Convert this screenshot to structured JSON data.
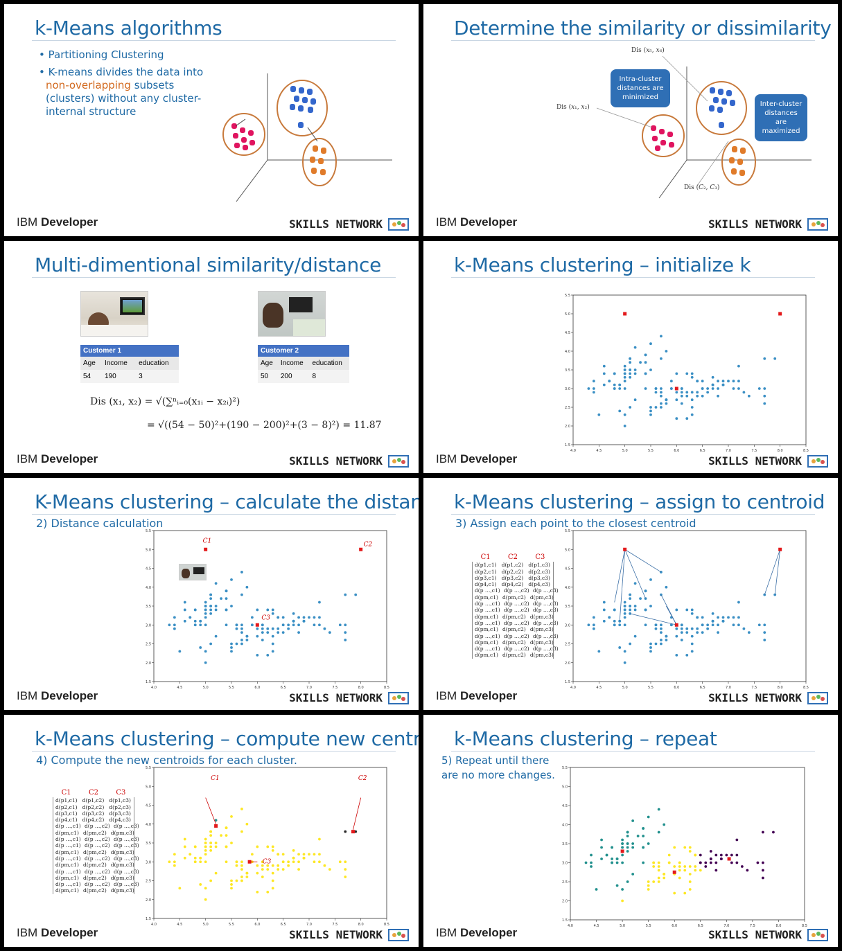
{
  "common": {
    "ibm_prefix": "IBM",
    "ibm_suffix": "Developer",
    "skills_network": "SKILLS NETWORK"
  },
  "slides": [
    {
      "title": "k-Means algorithms",
      "bullets": [
        {
          "text_a": "Partitioning Clustering",
          "text_b": "",
          "text_c": ""
        },
        {
          "text_a": "K-means divides the data into ",
          "text_b": "non-overlapping",
          "text_c": " subsets (clusters) without any cluster-internal structure"
        }
      ]
    },
    {
      "title": "Determine the similarity or dissimilarity",
      "intra_callout": "Intra-cluster distances are minimized",
      "inter_callout": "Inter-cluster distances are maximized",
      "labels": [
        "Dis (x5, x6)",
        "Dis (x1, x2)",
        "Dis (C2, C3)"
      ]
    },
    {
      "title": "Multi-dimentional similarity/distance",
      "customer1": {
        "header": "Customer 1",
        "cols": [
          "Age",
          "Income",
          "education"
        ],
        "vals": [
          "54",
          "190",
          "3"
        ]
      },
      "customer2": {
        "header": "Customer 2",
        "cols": [
          "Age",
          "Income",
          "education"
        ],
        "vals": [
          "50",
          "200",
          "8"
        ]
      },
      "formula1": "Dis (x₁, x₂) = √(∑ⁿᵢ₌₀(x₁ᵢ − x₂ᵢ)²)",
      "formula2": "= √((54 − 50)²+(190 − 200)²+(3 − 8)²) = 11.87"
    },
    {
      "title": "k-Means clustering – initialize k"
    },
    {
      "title": "K-Means clustering – calculate the distance",
      "subtitle": "2) Distance calculation"
    },
    {
      "title": "k-Means clustering – assign to centroid",
      "subtitle": "3) Assign each point to the closest centroid"
    },
    {
      "title": "k-Means clustering – compute new centroids",
      "subtitle": "4) Compute the new centroids for each cluster."
    },
    {
      "title": "k-Means clustering – repeat",
      "subtitle_line1": "5) Repeat until there",
      "subtitle_line2": "are no more changes."
    }
  ],
  "centroid_labels": [
    "C1",
    "C2",
    "C3"
  ],
  "matrix": {
    "headers": [
      "C1",
      "C2",
      "C3"
    ],
    "rows": [
      [
        "d(p1,c1)",
        "d(p1,c2)",
        "d(p1,c3)"
      ],
      [
        "d(p2,c1)",
        "d(p2,c2)",
        "d(p2,c3)"
      ],
      [
        "d(p3,c1)",
        "d(p3,c2)",
        "d(p3,c3)"
      ],
      [
        "d(p4,c1)",
        "d(p4,c2)",
        "d(p4,c3)"
      ],
      [
        "d(p …,c1)",
        "d(p …,c2)",
        "d(p …,c3)"
      ],
      [
        "d(pm,c1)",
        "d(pm,c2)",
        "d(pm,c3)"
      ],
      [
        "d(p …,c1)",
        "d(p …,c2)",
        "d(p …,c3)"
      ],
      [
        "d(p …,c1)",
        "d(p …,c2)",
        "d(p …,c3)"
      ],
      [
        "d(pm,c1)",
        "d(pm,c2)",
        "d(pm,c3)"
      ],
      [
        "d(p …,c1)",
        "d(p …,c2)",
        "d(p …,c3)"
      ],
      [
        "d(pm,c1)",
        "d(pm,c2)",
        "d(pm,c3)"
      ],
      [
        "d(p …,c1)",
        "d(p …,c2)",
        "d(p …,c3)"
      ],
      [
        "d(pm,c1)",
        "d(pm,c2)",
        "d(pm,c3)"
      ],
      [
        "d(p …,c1)",
        "d(p …,c2)",
        "d(p …,c3)"
      ],
      [
        "d(pm,c1)",
        "d(pm,c2)",
        "d(pm,c3)"
      ]
    ]
  },
  "chart_data": {
    "type": "scatter",
    "xlim": [
      4.0,
      8.5
    ],
    "ylim": [
      1.5,
      5.5
    ],
    "x_ticks": [
      "4.0",
      "4.5",
      "5.0",
      "5.5",
      "6.0",
      "6.5",
      "7.0",
      "7.5",
      "8.0",
      "8.5"
    ],
    "y_ticks": [
      "1.5",
      "2.0",
      "2.5",
      "3.0",
      "3.5",
      "4.0",
      "4.5",
      "5.0",
      "5.5"
    ],
    "initial_centroids": [
      [
        5.0,
        5.0
      ],
      [
        8.0,
        5.0
      ],
      [
        6.0,
        3.0
      ]
    ],
    "new_centroids": [
      [
        5.2,
        3.95
      ],
      [
        7.85,
        3.8
      ],
      [
        5.85,
        3.0
      ]
    ],
    "final_centroids": [
      [
        5.0,
        3.3
      ],
      [
        7.05,
        3.1
      ],
      [
        6.0,
        2.75
      ]
    ],
    "points": [
      [
        5.1,
        3.5
      ],
      [
        4.9,
        3.0
      ],
      [
        4.7,
        3.2
      ],
      [
        4.6,
        3.1
      ],
      [
        5.0,
        3.6
      ],
      [
        5.4,
        3.9
      ],
      [
        4.6,
        3.4
      ],
      [
        5.0,
        3.4
      ],
      [
        4.4,
        2.9
      ],
      [
        4.9,
        3.1
      ],
      [
        5.4,
        3.7
      ],
      [
        4.8,
        3.4
      ],
      [
        4.8,
        3.0
      ],
      [
        4.3,
        3.0
      ],
      [
        5.8,
        4.0
      ],
      [
        5.7,
        4.4
      ],
      [
        5.4,
        3.9
      ],
      [
        5.1,
        3.5
      ],
      [
        5.7,
        3.8
      ],
      [
        5.1,
        3.8
      ],
      [
        5.4,
        3.4
      ],
      [
        5.1,
        3.7
      ],
      [
        4.6,
        3.6
      ],
      [
        5.1,
        3.3
      ],
      [
        4.8,
        3.4
      ],
      [
        5.0,
        3.0
      ],
      [
        5.0,
        3.4
      ],
      [
        5.2,
        3.5
      ],
      [
        5.2,
        3.4
      ],
      [
        4.7,
        3.2
      ],
      [
        4.8,
        3.1
      ],
      [
        5.4,
        3.4
      ],
      [
        5.2,
        4.1
      ],
      [
        5.5,
        4.2
      ],
      [
        4.9,
        3.1
      ],
      [
        5.0,
        3.2
      ],
      [
        5.5,
        3.5
      ],
      [
        4.4,
        3.0
      ],
      [
        5.1,
        3.4
      ],
      [
        5.0,
        3.5
      ],
      [
        4.5,
        2.3
      ],
      [
        4.4,
        3.2
      ],
      [
        5.0,
        3.5
      ],
      [
        5.1,
        3.8
      ],
      [
        4.8,
        3.0
      ],
      [
        5.3,
        3.7
      ],
      [
        5.0,
        3.3
      ],
      [
        7.0,
        3.2
      ],
      [
        6.4,
        3.2
      ],
      [
        6.9,
        3.1
      ],
      [
        5.5,
        2.3
      ],
      [
        6.5,
        2.8
      ],
      [
        5.7,
        2.8
      ],
      [
        6.3,
        3.3
      ],
      [
        4.9,
        2.4
      ],
      [
        6.6,
        2.9
      ],
      [
        5.2,
        2.7
      ],
      [
        5.0,
        2.0
      ],
      [
        5.9,
        3.0
      ],
      [
        6.0,
        2.2
      ],
      [
        6.1,
        2.9
      ],
      [
        5.6,
        2.9
      ],
      [
        6.7,
        3.1
      ],
      [
        5.6,
        3.0
      ],
      [
        5.8,
        2.7
      ],
      [
        6.2,
        2.2
      ],
      [
        5.6,
        2.5
      ],
      [
        5.9,
        3.2
      ],
      [
        6.1,
        2.8
      ],
      [
        6.3,
        2.5
      ],
      [
        6.4,
        2.9
      ],
      [
        6.6,
        3.0
      ],
      [
        6.8,
        2.8
      ],
      [
        6.7,
        3.0
      ],
      [
        6.0,
        2.9
      ],
      [
        5.7,
        2.6
      ],
      [
        5.5,
        2.4
      ],
      [
        5.8,
        2.7
      ],
      [
        6.0,
        2.7
      ],
      [
        5.4,
        3.0
      ],
      [
        6.0,
        3.4
      ],
      [
        6.7,
        3.1
      ],
      [
        6.3,
        2.3
      ],
      [
        5.6,
        3.0
      ],
      [
        5.5,
        2.5
      ],
      [
        6.1,
        3.0
      ],
      [
        5.8,
        2.6
      ],
      [
        5.0,
        2.3
      ],
      [
        5.7,
        3.0
      ],
      [
        5.7,
        2.9
      ],
      [
        6.2,
        2.9
      ],
      [
        5.1,
        2.5
      ],
      [
        6.3,
        2.9
      ],
      [
        6.5,
        3.0
      ],
      [
        7.1,
        3.0
      ],
      [
        7.6,
        3.0
      ],
      [
        7.3,
        2.9
      ],
      [
        7.2,
        3.6
      ],
      [
        6.8,
        3.0
      ],
      [
        5.7,
        2.5
      ],
      [
        6.4,
        3.2
      ],
      [
        7.7,
        3.8
      ],
      [
        7.7,
        2.6
      ],
      [
        6.9,
        3.2
      ],
      [
        7.7,
        2.8
      ],
      [
        6.7,
        3.3
      ],
      [
        7.2,
        3.2
      ],
      [
        6.2,
        2.8
      ],
      [
        6.1,
        3.0
      ],
      [
        7.2,
        3.0
      ],
      [
        7.4,
        2.8
      ],
      [
        7.9,
        3.8
      ],
      [
        7.7,
        3.0
      ],
      [
        6.3,
        3.4
      ],
      [
        6.9,
        3.1
      ],
      [
        6.7,
        3.1
      ],
      [
        5.8,
        2.7
      ],
      [
        6.5,
        3.0
      ],
      [
        6.2,
        3.4
      ],
      [
        5.9,
        3.0
      ],
      [
        6.4,
        2.8
      ],
      [
        6.3,
        2.7
      ],
      [
        6.1,
        2.6
      ],
      [
        6.9,
        3.1
      ],
      [
        7.1,
        3.2
      ],
      [
        6.8,
        3.2
      ],
      [
        6.5,
        3.2
      ]
    ]
  },
  "colors": {
    "title": "#1f6aa5",
    "point": "#3a8fc4",
    "centroid": "#e31a1c",
    "cluster_teal": "#21908d",
    "cluster_yellow": "#fde725",
    "cluster_purple": "#440154",
    "pink": "#e0145f",
    "blue_dots": "#3366cc",
    "orange_dots": "#e07b2a"
  }
}
